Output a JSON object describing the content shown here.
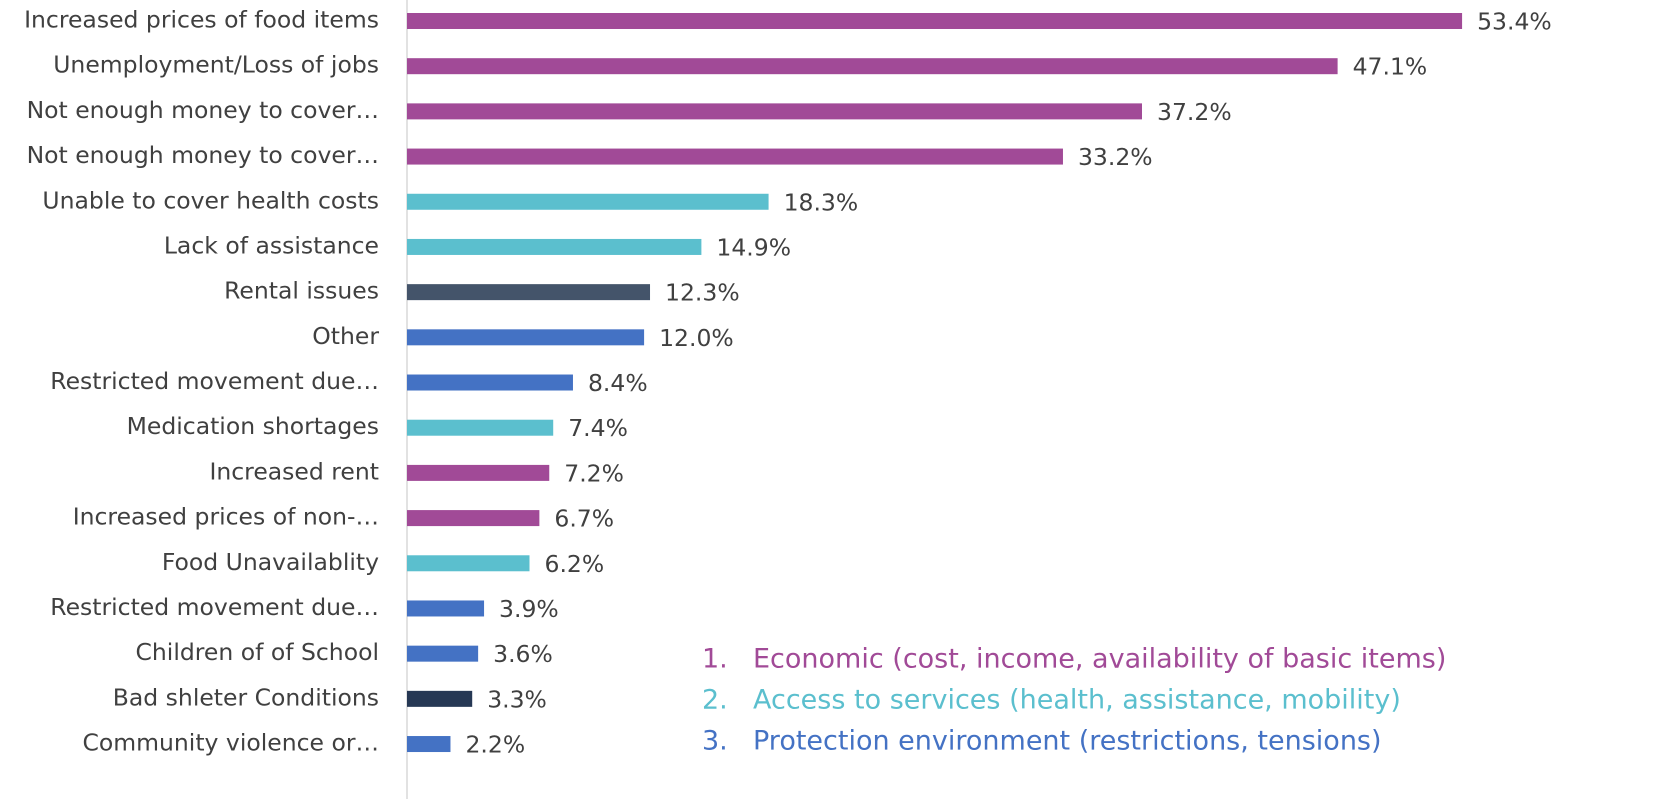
{
  "chart_data": {
    "type": "bar",
    "orientation": "horizontal",
    "categories": [
      "Increased prices of food items",
      "Unemployment/Loss of jobs",
      "Not enough money to cover…",
      "Not enough money to cover…",
      "Unable to cover health costs",
      "Lack of assistance",
      "Rental issues",
      "Other",
      "Restricted movement due…",
      "Medication shortages",
      "Increased rent",
      "Increased prices of non-…",
      "Food Unavailablity",
      "Restricted movement due…",
      "Children of of School",
      "Bad shleter Conditions",
      "Community violence or…"
    ],
    "values": [
      53.4,
      47.1,
      37.2,
      33.2,
      18.3,
      14.9,
      12.3,
      12.0,
      8.4,
      7.4,
      7.2,
      6.7,
      6.2,
      3.9,
      3.6,
      3.3,
      2.2
    ],
    "value_labels": [
      "53.4%",
      "47.1%",
      "37.2%",
      "33.2%",
      "18.3%",
      "14.9%",
      "12.3%",
      "12.0%",
      "8.4%",
      "7.4%",
      "7.2%",
      "6.7%",
      "6.2%",
      "3.9%",
      "3.6%",
      "3.3%",
      "2.2%"
    ],
    "colors": [
      "#a14a97",
      "#a14a97",
      "#a14a97",
      "#a14a97",
      "#5bbfce",
      "#5bbfce",
      "#44546a",
      "#4472c4",
      "#4472c4",
      "#5bbfce",
      "#a14a97",
      "#a14a97",
      "#5bbfce",
      "#4472c4",
      "#4472c4",
      "#263854",
      "#4472c4"
    ],
    "xlim": [
      0,
      62
    ],
    "annotations": [
      {
        "label": "1.",
        "text": "Economic (cost, income, availability of basic items)",
        "color": "#a14a97"
      },
      {
        "label": "2.",
        "text": "Access to services (health, assistance, mobility)",
        "color": "#5bbfce"
      },
      {
        "label": "3.",
        "text": "Protection environment (restrictions, tensions)",
        "color": "#4472c4"
      }
    ]
  }
}
